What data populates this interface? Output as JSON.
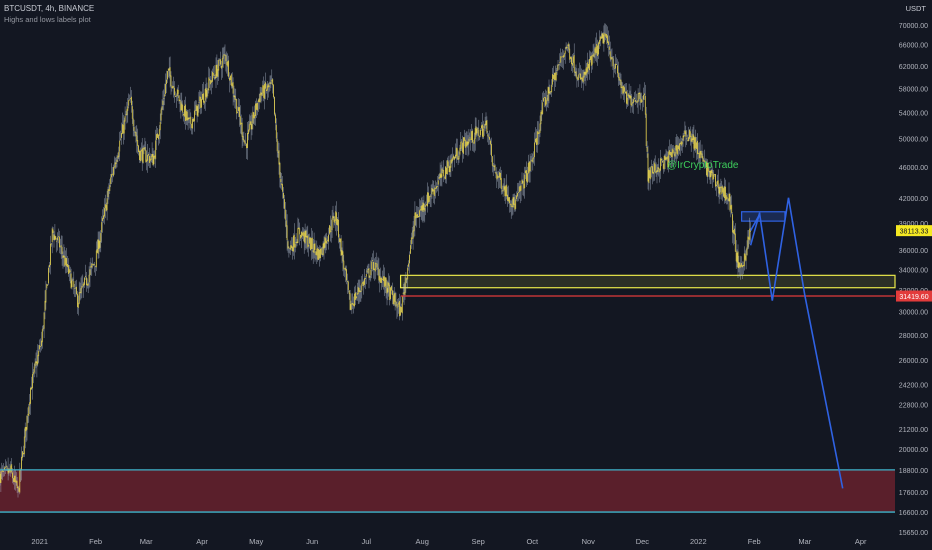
{
  "header": {
    "symbol": "BTCUSDT, 4h, BINANCE",
    "indicator": "Highs and lows labels plot",
    "currency": "USDT"
  },
  "watermark": "@IrCryptoTrade",
  "colors": {
    "background": "#131722",
    "candle": "#e8d44d",
    "wick": "#b8c4d6",
    "yellow_zone": "#e9e94a",
    "red_line": "#e23b3b",
    "blue": "#2f62e3",
    "cyan": "#3fb3c9",
    "bottom_zone": "#5a1f2b",
    "watermark": "#3ecf5c"
  },
  "chart_data": {
    "type": "line",
    "y_scale": "log",
    "ylim": [
      15650,
      74000
    ],
    "y_ticks": [
      15650,
      16600,
      17600,
      18800,
      20000,
      21200,
      22800,
      24200,
      26000,
      28000,
      30000,
      32000,
      34000,
      36000,
      39000,
      42000,
      46000,
      50000,
      54000,
      58000,
      62000,
      66000,
      70000
    ],
    "y_tick_labels": [
      "15650.00",
      "16600.00",
      "17600.00",
      "18800.00",
      "20000.00",
      "21200.00",
      "22800.00",
      "24200.00",
      "26000.00",
      "28000.00",
      "30000.00",
      "32000.00",
      "34000.00",
      "36000.00",
      "39000.00",
      "42000.00",
      "46000.00",
      "50000.00",
      "54000.00",
      "58000.00",
      "62000.00",
      "66000.00",
      "70000.00"
    ],
    "xlim": [
      "2020-12-10",
      "2022-04-20"
    ],
    "x_ticks": [
      "2021-01-01",
      "2021-02-01",
      "2021-03-01",
      "2021-04-01",
      "2021-05-01",
      "2021-06-01",
      "2021-07-01",
      "2021-08-01",
      "2021-09-01",
      "2021-10-01",
      "2021-11-01",
      "2021-12-01",
      "2022-01-01",
      "2022-02-01",
      "2022-03-01",
      "2022-04-01"
    ],
    "x_tick_labels": [
      "2021",
      "Feb",
      "Mar",
      "Apr",
      "May",
      "Jun",
      "Jul",
      "Aug",
      "Sep",
      "Oct",
      "Nov",
      "Dec",
      "2022",
      "Feb",
      "Mar",
      "Apr"
    ],
    "price_path": [
      [
        "2020-12-10",
        18500
      ],
      [
        "2020-12-16",
        18700
      ],
      [
        "2020-12-20",
        17600
      ],
      [
        "2020-12-27",
        24000
      ],
      [
        "2021-01-02",
        27500
      ],
      [
        "2021-01-08",
        38000
      ],
      [
        "2021-01-12",
        36500
      ],
      [
        "2021-01-22",
        31000
      ],
      [
        "2021-02-01",
        35000
      ],
      [
        "2021-02-10",
        45000
      ],
      [
        "2021-02-20",
        56000
      ],
      [
        "2021-02-25",
        48000
      ],
      [
        "2021-03-05",
        47000
      ],
      [
        "2021-03-13",
        61000
      ],
      [
        "2021-03-25",
        52000
      ],
      [
        "2021-04-05",
        59000
      ],
      [
        "2021-04-14",
        64000
      ],
      [
        "2021-04-25",
        49000
      ],
      [
        "2021-05-03",
        57000
      ],
      [
        "2021-05-10",
        58500
      ],
      [
        "2021-05-12",
        50000
      ],
      [
        "2021-05-19",
        36000
      ],
      [
        "2021-05-25",
        38000
      ],
      [
        "2021-06-05",
        35500
      ],
      [
        "2021-06-14",
        40000
      ],
      [
        "2021-06-22",
        30500
      ],
      [
        "2021-07-05",
        34500
      ],
      [
        "2021-07-20",
        30000
      ],
      [
        "2021-07-28",
        39500
      ],
      [
        "2021-08-15",
        46000
      ],
      [
        "2021-08-23",
        49000
      ],
      [
        "2021-09-06",
        52000
      ],
      [
        "2021-09-09",
        46000
      ],
      [
        "2021-09-21",
        41000
      ],
      [
        "2021-10-01",
        47000
      ],
      [
        "2021-10-07",
        55000
      ],
      [
        "2021-10-20",
        66000
      ],
      [
        "2021-10-28",
        59000
      ],
      [
        "2021-11-10",
        68000
      ],
      [
        "2021-11-22",
        56000
      ],
      [
        "2021-12-02",
        57000
      ],
      [
        "2021-12-04",
        45000
      ],
      [
        "2021-12-15",
        47000
      ],
      [
        "2021-12-27",
        51000
      ],
      [
        "2022-01-05",
        46000
      ],
      [
        "2022-01-12",
        43500
      ],
      [
        "2022-01-18",
        42000
      ],
      [
        "2022-01-22",
        35500
      ],
      [
        "2022-01-24",
        33500
      ],
      [
        "2022-01-30",
        38113
      ]
    ],
    "zones": [
      {
        "from": "2021-07-20",
        "to": "2022-04-20",
        "y_low": 32200,
        "y_high": 33400,
        "style": "yellow"
      },
      {
        "from": "2020-12-10",
        "to": "2022-04-20",
        "y_low": 16600,
        "y_high": 18800,
        "style": "maroon"
      },
      {
        "from": "2022-01-25",
        "to": "2022-02-18",
        "y_low": 39200,
        "y_high": 40300,
        "style": "blue"
      }
    ],
    "lines": [
      {
        "from": "2021-07-20",
        "to": "2022-04-20",
        "y": 31420,
        "style": "red"
      },
      {
        "from": "2020-12-10",
        "to": "2022-04-20",
        "y": 18800,
        "style": "cyan"
      },
      {
        "from": "2020-12-10",
        "to": "2022-04-20",
        "y": 16600,
        "style": "cyan"
      }
    ],
    "projection": [
      [
        "2022-01-30",
        38113
      ],
      [
        "2022-02-04",
        40000
      ],
      [
        "2022-02-11",
        31000
      ],
      [
        "2022-02-20",
        42000
      ],
      [
        "2022-02-29",
        31500
      ],
      [
        "2022-03-22",
        17800
      ]
    ],
    "projection_short": [
      [
        "2022-01-30",
        36500
      ],
      [
        "2022-02-04",
        40200
      ]
    ],
    "price_labels": [
      {
        "value": 38113.33,
        "text": "38113.33",
        "style": "yellow"
      },
      {
        "value": 31419.6,
        "text": "31419.60",
        "style": "red"
      }
    ]
  }
}
